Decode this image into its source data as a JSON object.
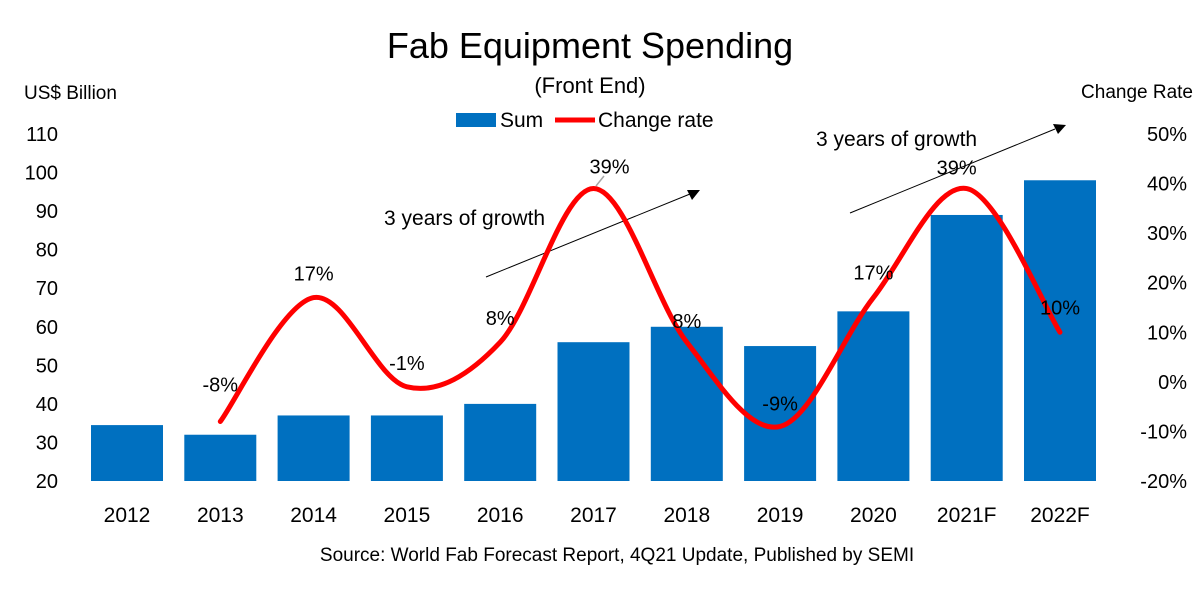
{
  "chart_data": {
    "type": "bar",
    "title": "Fab Equipment Spending",
    "subtitle": "(Front End)",
    "ylabel_left": "US$ Billion",
    "ylabel_right": "Change Rate",
    "ylim_left": [
      20,
      110
    ],
    "yticks_left": [
      20,
      30,
      40,
      50,
      60,
      70,
      80,
      90,
      100,
      110
    ],
    "ylim_right": [
      -20,
      50
    ],
    "yticks_right": [
      "-20%",
      "-10%",
      "0%",
      "10%",
      "20%",
      "30%",
      "40%",
      "50%"
    ],
    "yticks_right_values": [
      -20,
      -10,
      0,
      10,
      20,
      30,
      40,
      50
    ],
    "categories": [
      "2012",
      "2013",
      "2014",
      "2015",
      "2016",
      "2017",
      "2018",
      "2019",
      "2020",
      "2021F",
      "2022F"
    ],
    "series": [
      {
        "name": "Sum",
        "type": "bar",
        "axis": "left",
        "color": "#0070C0",
        "values": [
          34.5,
          32,
          37,
          37,
          40,
          56,
          60,
          55,
          64,
          89,
          98
        ]
      },
      {
        "name": "Change rate",
        "type": "line",
        "axis": "right",
        "color": "#FF0000",
        "values": [
          null,
          -8,
          17,
          -1,
          8,
          39,
          8,
          -9,
          17,
          39,
          10
        ],
        "labels": [
          null,
          "-8%",
          "17%",
          "-1%",
          "8%",
          "39%",
          "8%",
          "-9%",
          "17%",
          "39%",
          "10%"
        ]
      }
    ],
    "annotations": [
      {
        "text": "3 years of growth"
      },
      {
        "text": "3 years of growth"
      }
    ],
    "legend_position": "top",
    "grid": false,
    "source": "Source: World Fab Forecast Report, 4Q21 Update, Published by SEMI"
  }
}
